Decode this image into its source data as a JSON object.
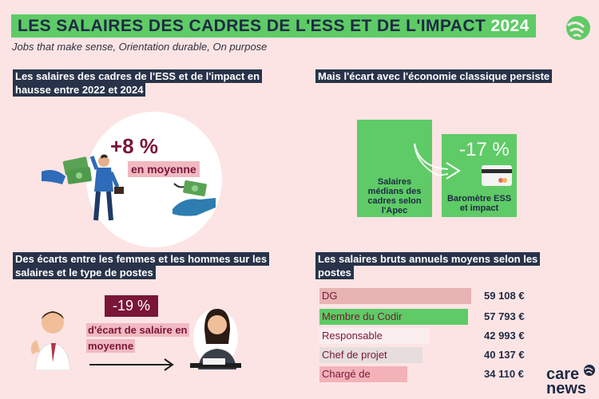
{
  "header": {
    "title_main": "LES SALAIRES DES CADRES DE L'ESS ET DE L'IMPACT",
    "title_year": "2024",
    "subtitle": "Jobs that make sense, Orientation durable, On purpose"
  },
  "section_rise": {
    "heading": "Les salaires des cadres de l'ESS et de l'impact en hausse entre 2022 et 2024",
    "value": "+8 %",
    "label": "en moyenne"
  },
  "section_gap": {
    "heading": "Mais l'écart avec l'économie classique persiste",
    "bar_apec_label": "Salaires médians des cadres selon l'Apec",
    "bar_ess_label": "Baromètre ESS et impact",
    "value": "-17 %"
  },
  "section_gender": {
    "heading": "Des écarts entre les femmes et les hommes sur les salaires et le type de postes",
    "value": "-19 %",
    "label": "d'écart de salaire en moyenne"
  },
  "section_positions": {
    "heading": "Les salaires bruts annuels moyens selon les postes",
    "rows": [
      {
        "label": "DG",
        "value": "59 108 €",
        "amount": 59108,
        "color": "#e7b3b3"
      },
      {
        "label": "Membre du Codir",
        "value": "57 793 €",
        "amount": 57793,
        "color": "#5ecb66"
      },
      {
        "label": "Responsable",
        "value": "42 993 €",
        "amount": 42993,
        "color": "#fbeeee"
      },
      {
        "label": "Chef de projet",
        "value": "40 137 €",
        "amount": 40137,
        "color": "#e6dede"
      },
      {
        "label": "Chargé de",
        "value": "34 110 €",
        "amount": 34110,
        "color": "#f3b2b8"
      }
    ]
  },
  "brand": {
    "line1": "care",
    "line2": "news",
    "accent": "#5ecb66",
    "dark": "#1e2a44",
    "wine": "#7a1638"
  }
}
